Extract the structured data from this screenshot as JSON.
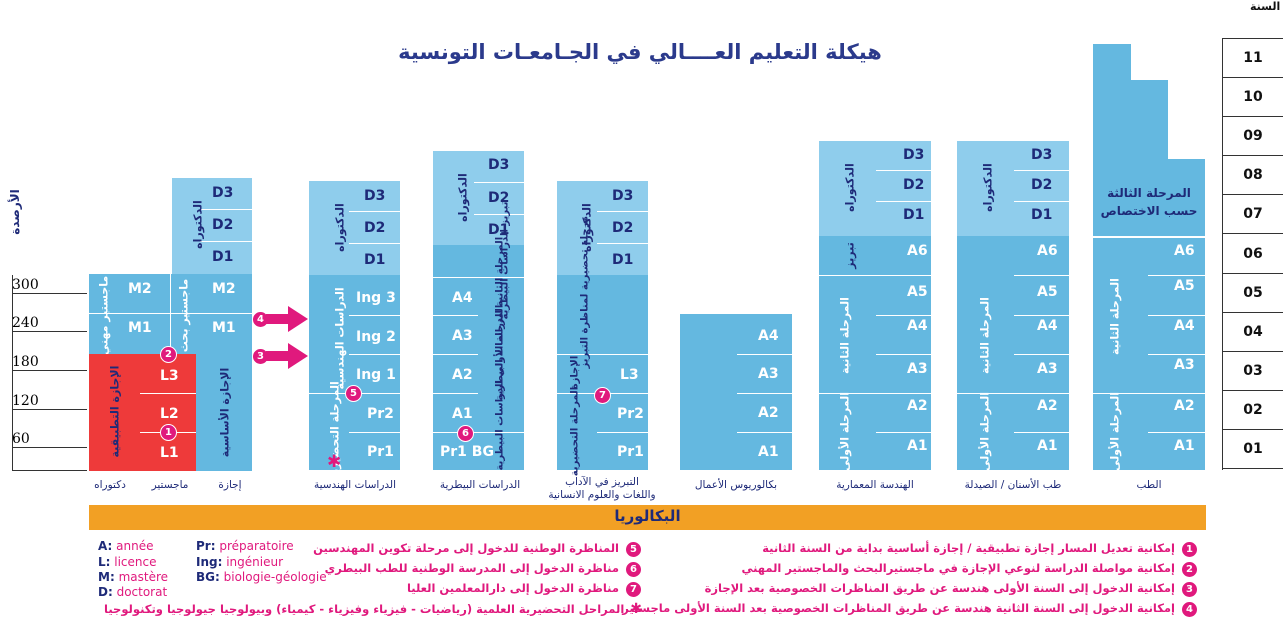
{
  "title": "هيكلة التعليم العــــالي في الجـامعـات التونسية",
  "axis_credits_label": "الأرصدة",
  "axis_year_label": "السنة",
  "credits": [
    "300",
    "240",
    "180",
    "120",
    "60"
  ],
  "years": [
    "11",
    "10",
    "09",
    "08",
    "07",
    "06",
    "05",
    "04",
    "03",
    "02",
    "01"
  ],
  "bac": "البكالوريا",
  "lmd": {
    "doctorate": "دكتوراه",
    "master": "ماجستير",
    "licence": "إجازة",
    "D3": "D3",
    "D2": "D2",
    "D1": "D1",
    "M2": "M2",
    "M1": "M1",
    "L3": "L3",
    "L2": "L2",
    "L1": "L1",
    "doct_v": "الدكتوراه",
    "m_pro": "ماجستير مهني",
    "m_res": "ماجستير بحث",
    "lic_app": "الإجازة التطبيقية",
    "lic_fond": "الإجازة الأساسية"
  },
  "eng": {
    "footer": "الدراسات الهندسية",
    "D3": "D3",
    "D2": "D2",
    "D1": "D1",
    "Ing3": "Ing 3",
    "Ing2": "Ing 2",
    "Ing1": "Ing 1",
    "Pr2": "Pr2",
    "Pr1": "Pr1",
    "doct_v": "الدكتوراه",
    "eng_v": "الدراسات الهندسية",
    "prep_v": "المرحلة التحضيرية"
  },
  "vet": {
    "footer": "الدراسات البيطرية",
    "D3": "D3",
    "D2": "D2",
    "D1": "D1",
    "A4": "A4",
    "A3": "A3",
    "A2": "A2",
    "A1": "A1",
    "Pr1BG": "Pr1  BG",
    "doct_v": "الدكتوراه",
    "spec_v": "تبريز الدراسات البيطرية",
    "c2_v": "المرحلة الثانية الدراسات البيطرية",
    "c1_v": "المرحلة الأولى الدراسات البيطرية"
  },
  "lettres": {
    "footer1": "التبريز في الآداب",
    "footer2": "واللغات والعلوم الانسانية",
    "D3": "D3",
    "D2": "D2",
    "D1": "D1",
    "L3": "L3",
    "Pr2": "Pr2",
    "Pr1": "Pr1",
    "doct_v": "الدكتوراه",
    "agreg_v": "مرحلة تحضيرية لمناظرة التبريز",
    "lic_v": "الإجازة",
    "prep_v": "المرحلة التحضيرية"
  },
  "bba": {
    "footer": "بكالوريوس الأعمال",
    "A4": "A4",
    "A3": "A3",
    "A2": "A2",
    "A1": "A1"
  },
  "archi": {
    "footer": "الهندسة المعمارية",
    "D3": "D3",
    "D2": "D2",
    "D1": "D1",
    "A6": "A6",
    "A5": "A5",
    "A4": "A4",
    "A3": "A3",
    "A2": "A2",
    "A1": "A1",
    "doct_v": "الدكتوراه",
    "spec_v": "تبريز",
    "c2_v": "المرحلة الثانية",
    "c1_v": "المرحلة الأولى"
  },
  "dent": {
    "footer": "طب الأسنان / الصيدلة",
    "D3": "D3",
    "D2": "D2",
    "D1": "D1",
    "A6": "A6",
    "A5": "A5",
    "A4": "A4",
    "A3": "A3",
    "A2": "A2",
    "A1": "A1",
    "doct_v": "الدكتوراه",
    "c2_v": "المرحلة الثانية",
    "c1_v": "المرحلة الأولى"
  },
  "med": {
    "footer": "الطب",
    "third1": "المرحلة الثالثة",
    "third2": "حسب الاختصاص",
    "A6": "A6",
    "A5": "A5",
    "A4": "A4",
    "A3": "A3",
    "A2": "A2",
    "A1": "A1",
    "c2_v": "المرحلة الثانية",
    "c1_v": "المرحلة الأولى"
  },
  "markers": {
    "m1": "1",
    "m2": "2",
    "m3": "3",
    "m4": "4",
    "m5": "5",
    "m6": "6",
    "m7": "7",
    "star": "✱"
  },
  "abbr": {
    "A_k": "A:",
    "A_v": " année",
    "L_k": "L:",
    "L_v": " licence",
    "M_k": "M:",
    "M_v": " mastère",
    "D_k": "D:",
    "D_v": " doctorat",
    "Pr_k": "Pr:",
    "Pr_v": " préparatoire",
    "Ing_k": "Ing:",
    "Ing_v": " ingénieur",
    "BG_k": "BG:",
    "BG_v": " biologie-géologie"
  },
  "legend": {
    "l1": "إمكانية تعديل المسار إجازة تطبيقية / إجازة أساسية بداية من السنة الثانية",
    "l2": "إمكانية مواصلة الدراسة لنوعي الإجازة في ماجستيرالبحث والماجستير المهني",
    "l3": "إمكانية الدخول إلى السنة الأولى هندسة عن طريق المناظرات الخصوصية بعد الإجازة",
    "l4": "إمكانية الدخول إلى السنة الثانية هندسة عن طريق المناظرات الخصوصية بعد السنة الأولى ماجستير",
    "l5": "المناظرة الوطنية للدخول إلى مرحلة تكوين المهندسين",
    "l6": "مناظرة الدخول إلى المدرسة الوطنية للطب البيطري",
    "l7": "مناظرة الدخول إلى دارالمعلمين العليا",
    "l8": "المراحل التحضيرية العلمية (رياضيات - فيزياء وفيزياء - كيمياء) وبيولوجيا جيولوجيا وتكنولوجيا"
  },
  "colors": {
    "dark": "#64b8e0",
    "mid": "#8fcdec",
    "light": "#b5def3",
    "red": "#ee3a3a",
    "pink": "#e0197d",
    "orange": "#f2a024",
    "navy": "#1e2a78"
  }
}
